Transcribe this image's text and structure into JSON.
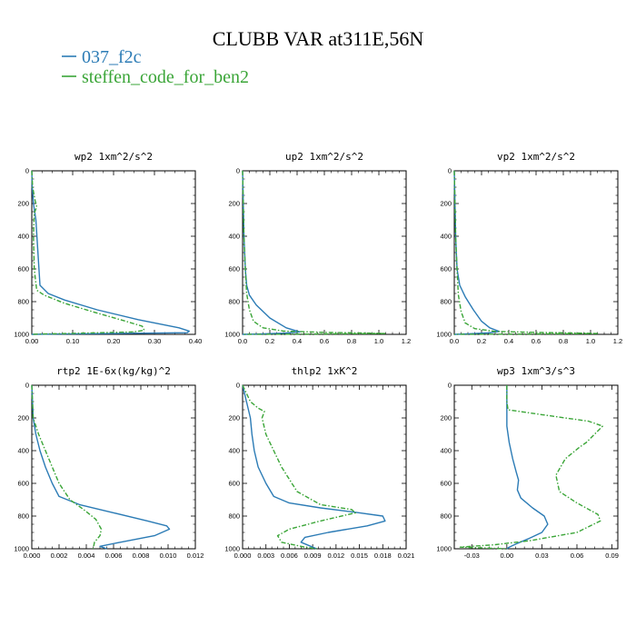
{
  "figure": {
    "title": "CLUBB VAR at311E,56N",
    "legend": [
      {
        "name": "037_f2c",
        "color": "#2b7bb5",
        "style": "solid"
      },
      {
        "name": "steffen_code_for_ben2",
        "color": "#3aa537",
        "style": "dashdot"
      }
    ]
  },
  "chart_data": [
    {
      "type": "line",
      "title": "wp2",
      "units": "1xm^2/s^2",
      "xlim": [
        0,
        0.4
      ],
      "xticks": [
        0.0,
        0.1,
        0.2,
        0.3,
        0.4
      ],
      "xtick_labels": [
        "0.00",
        "0.10",
        "0.20",
        "0.30",
        "0.40"
      ],
      "ylim": [
        0,
        1000
      ],
      "yticks": [
        0,
        200,
        400,
        600,
        800,
        1000
      ],
      "ytick_labels": [
        "0",
        "200",
        "400",
        "600",
        "800",
        "1000"
      ],
      "y_reversed": true,
      "series": [
        {
          "name": "037_f2c",
          "color": "#2b7bb5",
          "style": "solid",
          "x": [
            0.0,
            0.001,
            0.004,
            0.01,
            0.015,
            0.02,
            0.04,
            0.08,
            0.16,
            0.26,
            0.36,
            0.385,
            0.38,
            0.2,
            0.05,
            0.0
          ],
          "y": [
            0,
            100,
            200,
            300,
            500,
            700,
            750,
            790,
            850,
            910,
            960,
            980,
            990,
            995,
            998,
            1000
          ]
        },
        {
          "name": "steffen_code_for_ben2",
          "color": "#3aa537",
          "style": "dashdot",
          "x": [
            0.0,
            0.002,
            0.008,
            0.012,
            0.006,
            0.004,
            0.006,
            0.012,
            0.03,
            0.08,
            0.16,
            0.23,
            0.27,
            0.275,
            0.25,
            0.1,
            0.02,
            0.0
          ],
          "y": [
            0,
            100,
            180,
            220,
            260,
            400,
            600,
            730,
            760,
            810,
            870,
            920,
            950,
            975,
            985,
            994,
            998,
            1000
          ]
        }
      ]
    },
    {
      "type": "line",
      "title": "up2",
      "units": "1xm^2/s^2",
      "xlim": [
        0,
        1.2
      ],
      "xticks": [
        0.0,
        0.2,
        0.4,
        0.6,
        0.8,
        1.0,
        1.2
      ],
      "xtick_labels": [
        "0.0",
        "0.2",
        "0.4",
        "0.6",
        "0.8",
        "1.0",
        "1.2"
      ],
      "ylim": [
        0,
        1000
      ],
      "yticks": [
        0,
        200,
        400,
        600,
        800,
        1000
      ],
      "ytick_labels": [
        "0",
        "200",
        "400",
        "600",
        "800",
        "1000"
      ],
      "y_reversed": true,
      "series": [
        {
          "name": "037_f2c",
          "color": "#2b7bb5",
          "style": "solid",
          "x": [
            0.0,
            0.005,
            0.01,
            0.02,
            0.03,
            0.05,
            0.1,
            0.2,
            0.32,
            0.42,
            0.3,
            0.1,
            0.0
          ],
          "y": [
            0,
            200,
            400,
            600,
            700,
            760,
            820,
            900,
            960,
            985,
            993,
            998,
            1000
          ]
        },
        {
          "name": "steffen_code_for_ben2",
          "color": "#3aa537",
          "style": "dashdot",
          "x": [
            0.0,
            0.005,
            0.01,
            0.02,
            0.03,
            0.05,
            0.08,
            0.15,
            0.3,
            0.6,
            0.9,
            1.05,
            0.5,
            0.0
          ],
          "y": [
            0,
            200,
            400,
            600,
            750,
            850,
            920,
            960,
            980,
            988,
            992,
            995,
            998,
            1000
          ]
        }
      ]
    },
    {
      "type": "line",
      "title": "vp2",
      "units": "1xm^2/s^2",
      "xlim": [
        0,
        1.2
      ],
      "xticks": [
        0.0,
        0.2,
        0.4,
        0.6,
        0.8,
        1.0,
        1.2
      ],
      "xtick_labels": [
        "0.0",
        "0.2",
        "0.4",
        "0.6",
        "0.8",
        "1.0",
        "1.2"
      ],
      "ylim": [
        0,
        1000
      ],
      "yticks": [
        0,
        200,
        400,
        600,
        800,
        1000
      ],
      "ytick_labels": [
        "0",
        "200",
        "400",
        "600",
        "800",
        "1000"
      ],
      "y_reversed": true,
      "series": [
        {
          "name": "037_f2c",
          "color": "#2b7bb5",
          "style": "solid",
          "x": [
            0.0,
            0.005,
            0.01,
            0.02,
            0.04,
            0.08,
            0.14,
            0.2,
            0.26,
            0.33,
            0.25,
            0.1,
            0.0
          ],
          "y": [
            0,
            200,
            400,
            600,
            700,
            770,
            850,
            920,
            960,
            982,
            991,
            997,
            1000
          ]
        },
        {
          "name": "steffen_code_for_ben2",
          "color": "#3aa537",
          "style": "dashdot",
          "x": [
            0.0,
            0.005,
            0.01,
            0.02,
            0.03,
            0.05,
            0.08,
            0.15,
            0.3,
            0.6,
            0.9,
            1.05,
            0.5,
            0.0
          ],
          "y": [
            0,
            200,
            400,
            600,
            760,
            860,
            930,
            965,
            982,
            988,
            992,
            995,
            998,
            1000
          ]
        }
      ]
    },
    {
      "type": "line",
      "title": "rtp2",
      "units": "1E-6x(kg/kg)^2",
      "xlim": [
        0,
        0.012
      ],
      "xticks": [
        0.0,
        0.002,
        0.004,
        0.006,
        0.008,
        0.01,
        0.012
      ],
      "xtick_labels": [
        "0.000",
        "0.002",
        "0.004",
        "0.006",
        "0.008",
        "0.010",
        "0.012"
      ],
      "ylim": [
        0,
        1000
      ],
      "yticks": [
        0,
        200,
        400,
        600,
        800,
        1000
      ],
      "ytick_labels": [
        "0",
        "200",
        "400",
        "600",
        "800",
        "1000"
      ],
      "y_reversed": true,
      "series": [
        {
          "name": "037_f2c",
          "color": "#2b7bb5",
          "style": "solid",
          "x": [
            0.0,
            0.0001,
            0.0003,
            0.0006,
            0.001,
            0.0015,
            0.002,
            0.0035,
            0.006,
            0.0085,
            0.0099,
            0.0101,
            0.009,
            0.0065,
            0.005,
            0.0055
          ],
          "y": [
            0,
            200,
            300,
            400,
            500,
            600,
            680,
            730,
            780,
            830,
            860,
            880,
            920,
            960,
            985,
            1000
          ]
        },
        {
          "name": "steffen_code_for_ben2",
          "color": "#3aa537",
          "style": "dashdot",
          "x": [
            0.0,
            0.0001,
            0.0005,
            0.001,
            0.0015,
            0.002,
            0.0028,
            0.0038,
            0.0047,
            0.0051,
            0.005,
            0.0046,
            0.0045
          ],
          "y": [
            0,
            200,
            300,
            400,
            500,
            600,
            700,
            760,
            820,
            880,
            920,
            960,
            1000
          ]
        }
      ]
    },
    {
      "type": "line",
      "title": "thlp2",
      "units": "1xK^2",
      "xlim": [
        0,
        0.021
      ],
      "xticks": [
        0.0,
        0.003,
        0.006,
        0.009,
        0.012,
        0.015,
        0.018,
        0.021
      ],
      "xtick_labels": [
        "0.000",
        "0.003",
        "0.006",
        "0.009",
        "0.012",
        "0.015",
        "0.018",
        "0.021"
      ],
      "ylim": [
        0,
        1000
      ],
      "yticks": [
        0,
        200,
        400,
        600,
        800,
        1000
      ],
      "ytick_labels": [
        "0",
        "200",
        "400",
        "600",
        "800",
        "1000"
      ],
      "y_reversed": true,
      "series": [
        {
          "name": "037_f2c",
          "color": "#2b7bb5",
          "style": "solid",
          "x": [
            0.0,
            0.0005,
            0.001,
            0.0012,
            0.0015,
            0.002,
            0.003,
            0.004,
            0.006,
            0.01,
            0.015,
            0.018,
            0.0183,
            0.016,
            0.011,
            0.008,
            0.0075,
            0.009,
            0.0095
          ],
          "y": [
            0,
            100,
            200,
            300,
            400,
            500,
            600,
            680,
            720,
            750,
            780,
            800,
            830,
            860,
            900,
            930,
            960,
            990,
            1000
          ]
        },
        {
          "name": "steffen_code_for_ben2",
          "color": "#3aa537",
          "style": "dashdot",
          "x": [
            0.0,
            0.0005,
            0.001,
            0.002,
            0.0028,
            0.0025,
            0.003,
            0.004,
            0.005,
            0.007,
            0.01,
            0.014,
            0.0145,
            0.01,
            0.006,
            0.0045,
            0.005,
            0.008,
            0.0095
          ],
          "y": [
            0,
            50,
            100,
            140,
            160,
            200,
            300,
            400,
            500,
            650,
            730,
            760,
            780,
            830,
            880,
            920,
            960,
            990,
            1000
          ]
        }
      ]
    },
    {
      "type": "line",
      "title": "wp3",
      "units": "1xm^3/s^3",
      "xlim": [
        -0.045,
        0.095
      ],
      "xticks": [
        -0.03,
        0.0,
        0.03,
        0.06,
        0.09
      ],
      "xtick_labels": [
        "-0.03",
        "0.00",
        "0.03",
        "0.06",
        "0.09"
      ],
      "ylim": [
        0,
        1000
      ],
      "yticks": [
        0,
        200,
        400,
        600,
        800,
        1000
      ],
      "ytick_labels": [
        "0",
        "200",
        "400",
        "600",
        "800",
        "1000"
      ],
      "y_reversed": true,
      "series": [
        {
          "name": "037_f2c",
          "color": "#2b7bb5",
          "style": "solid",
          "x": [
            0.0,
            0.0,
            0.0,
            0.002,
            0.005,
            0.008,
            0.01,
            0.009,
            0.012,
            0.022,
            0.032,
            0.035,
            0.03,
            0.018,
            0.008,
            0.002,
            0.0
          ],
          "y": [
            0,
            150,
            250,
            350,
            450,
            530,
            580,
            640,
            690,
            750,
            800,
            850,
            900,
            940,
            970,
            990,
            1000
          ]
        },
        {
          "name": "steffen_code_for_ben2",
          "color": "#3aa537",
          "style": "dashdot",
          "x": [
            0.0,
            0.0,
            0.001,
            0.03,
            0.07,
            0.082,
            0.075,
            0.068,
            0.062,
            0.05,
            0.042,
            0.045,
            0.06,
            0.078,
            0.08,
            0.06,
            0.02,
            -0.01,
            -0.04,
            0.0
          ],
          "y": [
            0,
            100,
            150,
            180,
            220,
            250,
            300,
            350,
            380,
            450,
            550,
            650,
            720,
            790,
            830,
            900,
            950,
            975,
            990,
            1000
          ]
        }
      ]
    }
  ]
}
